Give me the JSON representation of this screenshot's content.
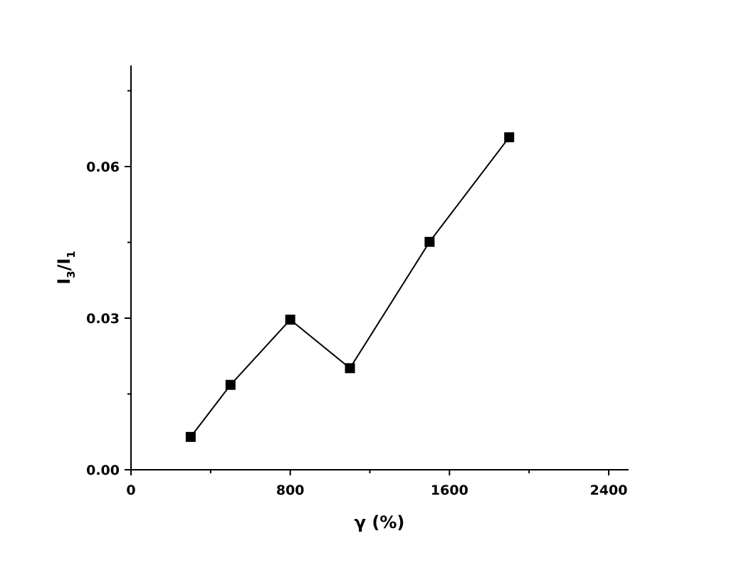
{
  "chart_data": {
    "type": "line",
    "title": "",
    "xlabel": "γ (%)",
    "ylabel_main": "I",
    "ylabel_sub1": "3",
    "ylabel_slash": "/I",
    "ylabel_sub2": "1",
    "xlim": [
      0,
      2500
    ],
    "ylim": [
      0,
      0.08
    ],
    "x_ticks": [
      0,
      800,
      1600,
      2400
    ],
    "x_tick_labels": [
      "0",
      "800",
      "1600",
      "2400"
    ],
    "x_minor_ticks": [
      400,
      1200,
      2000
    ],
    "y_ticks": [
      0,
      0.03,
      0.06
    ],
    "y_tick_labels": [
      "0.00",
      "0.03",
      "0.06"
    ],
    "y_minor_ticks": [
      0.015,
      0.045,
      0.075
    ],
    "grid": false,
    "marker": "square",
    "color": "#000000",
    "series": [
      {
        "x": [
          300,
          500,
          800,
          1100,
          1500,
          1900
        ],
        "y": [
          0.0065,
          0.0168,
          0.0297,
          0.0201,
          0.0451,
          0.0658
        ]
      }
    ]
  }
}
